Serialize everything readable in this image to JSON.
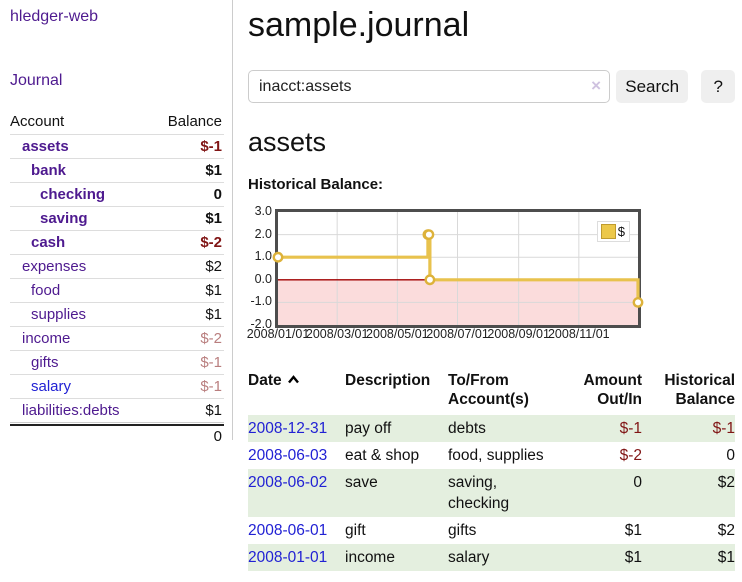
{
  "theme": {
    "purple": "#4e1a8f",
    "blue": "#2121d4",
    "red_strong": "#801515",
    "red_faded": "#b97e7e",
    "row_green": "#e4efdf",
    "chart_line": "#e8c24d",
    "chart_border": "#4d4d4d"
  },
  "sidebar": {
    "app_title": "hledger-web",
    "nav": {
      "journal": "Journal"
    },
    "accounts_header": {
      "account": "Account",
      "balance": "Balance"
    },
    "accounts": [
      {
        "name": "assets",
        "balance": "$-1",
        "depth": 1,
        "bold": true,
        "value_style": "neg-strong",
        "name_color": "purple"
      },
      {
        "name": "bank",
        "balance": "$1",
        "depth": 2,
        "bold": true,
        "value_style": "pos",
        "name_color": "purple"
      },
      {
        "name": "checking",
        "balance": "0",
        "depth": 3,
        "bold": true,
        "value_style": "pos",
        "name_color": "purple"
      },
      {
        "name": "saving",
        "balance": "$1",
        "depth": 3,
        "bold": true,
        "value_style": "pos",
        "name_color": "purple"
      },
      {
        "name": "cash",
        "balance": "$-2",
        "depth": 2,
        "bold": true,
        "value_style": "neg-strong",
        "name_color": "purple"
      },
      {
        "name": "expenses",
        "balance": "$2",
        "depth": 1,
        "bold": false,
        "value_style": "pos",
        "name_color": "purple"
      },
      {
        "name": "food",
        "balance": "$1",
        "depth": 2,
        "bold": false,
        "value_style": "pos",
        "name_color": "purple"
      },
      {
        "name": "supplies",
        "balance": "$1",
        "depth": 2,
        "bold": false,
        "value_style": "pos",
        "name_color": "purple"
      },
      {
        "name": "income",
        "balance": "$-2",
        "depth": 1,
        "bold": false,
        "value_style": "neg-faded",
        "name_color": "purple"
      },
      {
        "name": "gifts",
        "balance": "$-1",
        "depth": 2,
        "bold": false,
        "value_style": "neg-faded",
        "name_color": "purple"
      },
      {
        "name": "salary",
        "balance": "$-1",
        "depth": 2,
        "bold": false,
        "value_style": "neg-faded",
        "name_color": "blue"
      },
      {
        "name": "liabilities:debts",
        "balance": "$1",
        "depth": 1,
        "bold": false,
        "value_style": "pos",
        "name_color": "purple"
      }
    ],
    "total": "0"
  },
  "main": {
    "title": "sample.journal",
    "search": {
      "value": "inacct:assets",
      "clear": "×",
      "button_label": "Search",
      "help_label": "?"
    },
    "account_heading": "assets",
    "chart_label": "Historical Balance:"
  },
  "chart_data": {
    "type": "line",
    "step": true,
    "title": "Historical Balance",
    "series": [
      {
        "name": "$",
        "points": [
          [
            "2008-01-01",
            1
          ],
          [
            "2008-06-01",
            2
          ],
          [
            "2008-06-02",
            2
          ],
          [
            "2008-06-03",
            0
          ],
          [
            "2008-12-31",
            -1
          ]
        ]
      }
    ],
    "xrange": [
      "2008-01-01",
      "2008-12-31"
    ],
    "ylim": [
      -2,
      3
    ],
    "ytick_labels": [
      "3.0",
      "2.0",
      "1.0",
      "0.0",
      "-1.0",
      "-2.0"
    ],
    "xtick_labels": [
      "2008/01/01",
      "2008/03/01",
      "2008/05/01",
      "2008/07/01",
      "2008/09/01",
      "2008/11/01"
    ],
    "legend_label": "$",
    "grid": true,
    "legend_position": "top-right",
    "colors": {
      "line": "#e8c24d",
      "marker_stroke": "#ddb23a",
      "negative_fill": "#fbdcdc",
      "zero_line": "#a00000",
      "grid": "#d9d9d9"
    }
  },
  "register": {
    "header": {
      "date": "Date",
      "description": "Description",
      "accounts": "To/From\nAccount(s)",
      "amount": "Amount\nOut/In",
      "balance": "Historical\nBalance"
    },
    "rows": [
      {
        "date": "2008-12-31",
        "description": "pay off",
        "accounts": "debts",
        "amount": "$-1",
        "amount_negative": true,
        "balance": "$-1",
        "balance_negative": true,
        "shaded": true
      },
      {
        "date": "2008-06-03",
        "description": "eat & shop",
        "accounts": "food, supplies",
        "amount": "$-2",
        "amount_negative": true,
        "balance": "0",
        "balance_negative": false,
        "shaded": false
      },
      {
        "date": "2008-06-02",
        "description": "save",
        "accounts": "saving,\nchecking",
        "amount": "0",
        "amount_negative": false,
        "balance": "$2",
        "balance_negative": false,
        "shaded": true
      },
      {
        "date": "2008-06-01",
        "description": "gift",
        "accounts": "gifts",
        "amount": "$1",
        "amount_negative": false,
        "balance": "$2",
        "balance_negative": false,
        "shaded": false
      },
      {
        "date": "2008-01-01",
        "description": "income",
        "accounts": "salary",
        "amount": "$1",
        "amount_negative": false,
        "balance": "$1",
        "balance_negative": false,
        "shaded": true
      }
    ]
  }
}
